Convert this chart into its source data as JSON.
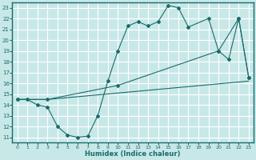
{
  "xlabel": "Humidex (Indice chaleur)",
  "bg_color": "#c8e8e8",
  "grid_color": "#ffffff",
  "line_color": "#1a6b6b",
  "xlim": [
    -0.5,
    23.5
  ],
  "ylim": [
    10.5,
    23.5
  ],
  "yticks": [
    11,
    12,
    13,
    14,
    15,
    16,
    17,
    18,
    19,
    20,
    21,
    22,
    23
  ],
  "xticks": [
    0,
    1,
    2,
    3,
    4,
    5,
    6,
    7,
    8,
    9,
    10,
    11,
    12,
    13,
    14,
    15,
    16,
    17,
    18,
    19,
    20,
    21,
    22,
    23
  ],
  "line1_x": [
    0,
    1,
    2,
    3,
    4,
    5,
    6,
    7,
    8,
    9,
    10,
    11,
    12,
    13,
    14,
    15,
    16,
    17,
    19,
    20,
    21,
    22,
    23
  ],
  "line1_y": [
    14.5,
    14.5,
    14.0,
    13.8,
    12.0,
    11.2,
    11.0,
    11.1,
    13.0,
    16.2,
    19.0,
    21.3,
    21.7,
    21.3,
    21.7,
    23.2,
    23.0,
    21.2,
    22.0,
    19.0,
    18.2,
    22.0,
    16.5
  ],
  "line2_x": [
    0,
    3,
    10,
    20,
    22,
    23
  ],
  "line2_y": [
    14.5,
    14.5,
    15.8,
    19.0,
    22.0,
    16.5
  ],
  "line3_x": [
    0,
    3,
    23
  ],
  "line3_y": [
    14.5,
    14.5,
    16.2
  ]
}
